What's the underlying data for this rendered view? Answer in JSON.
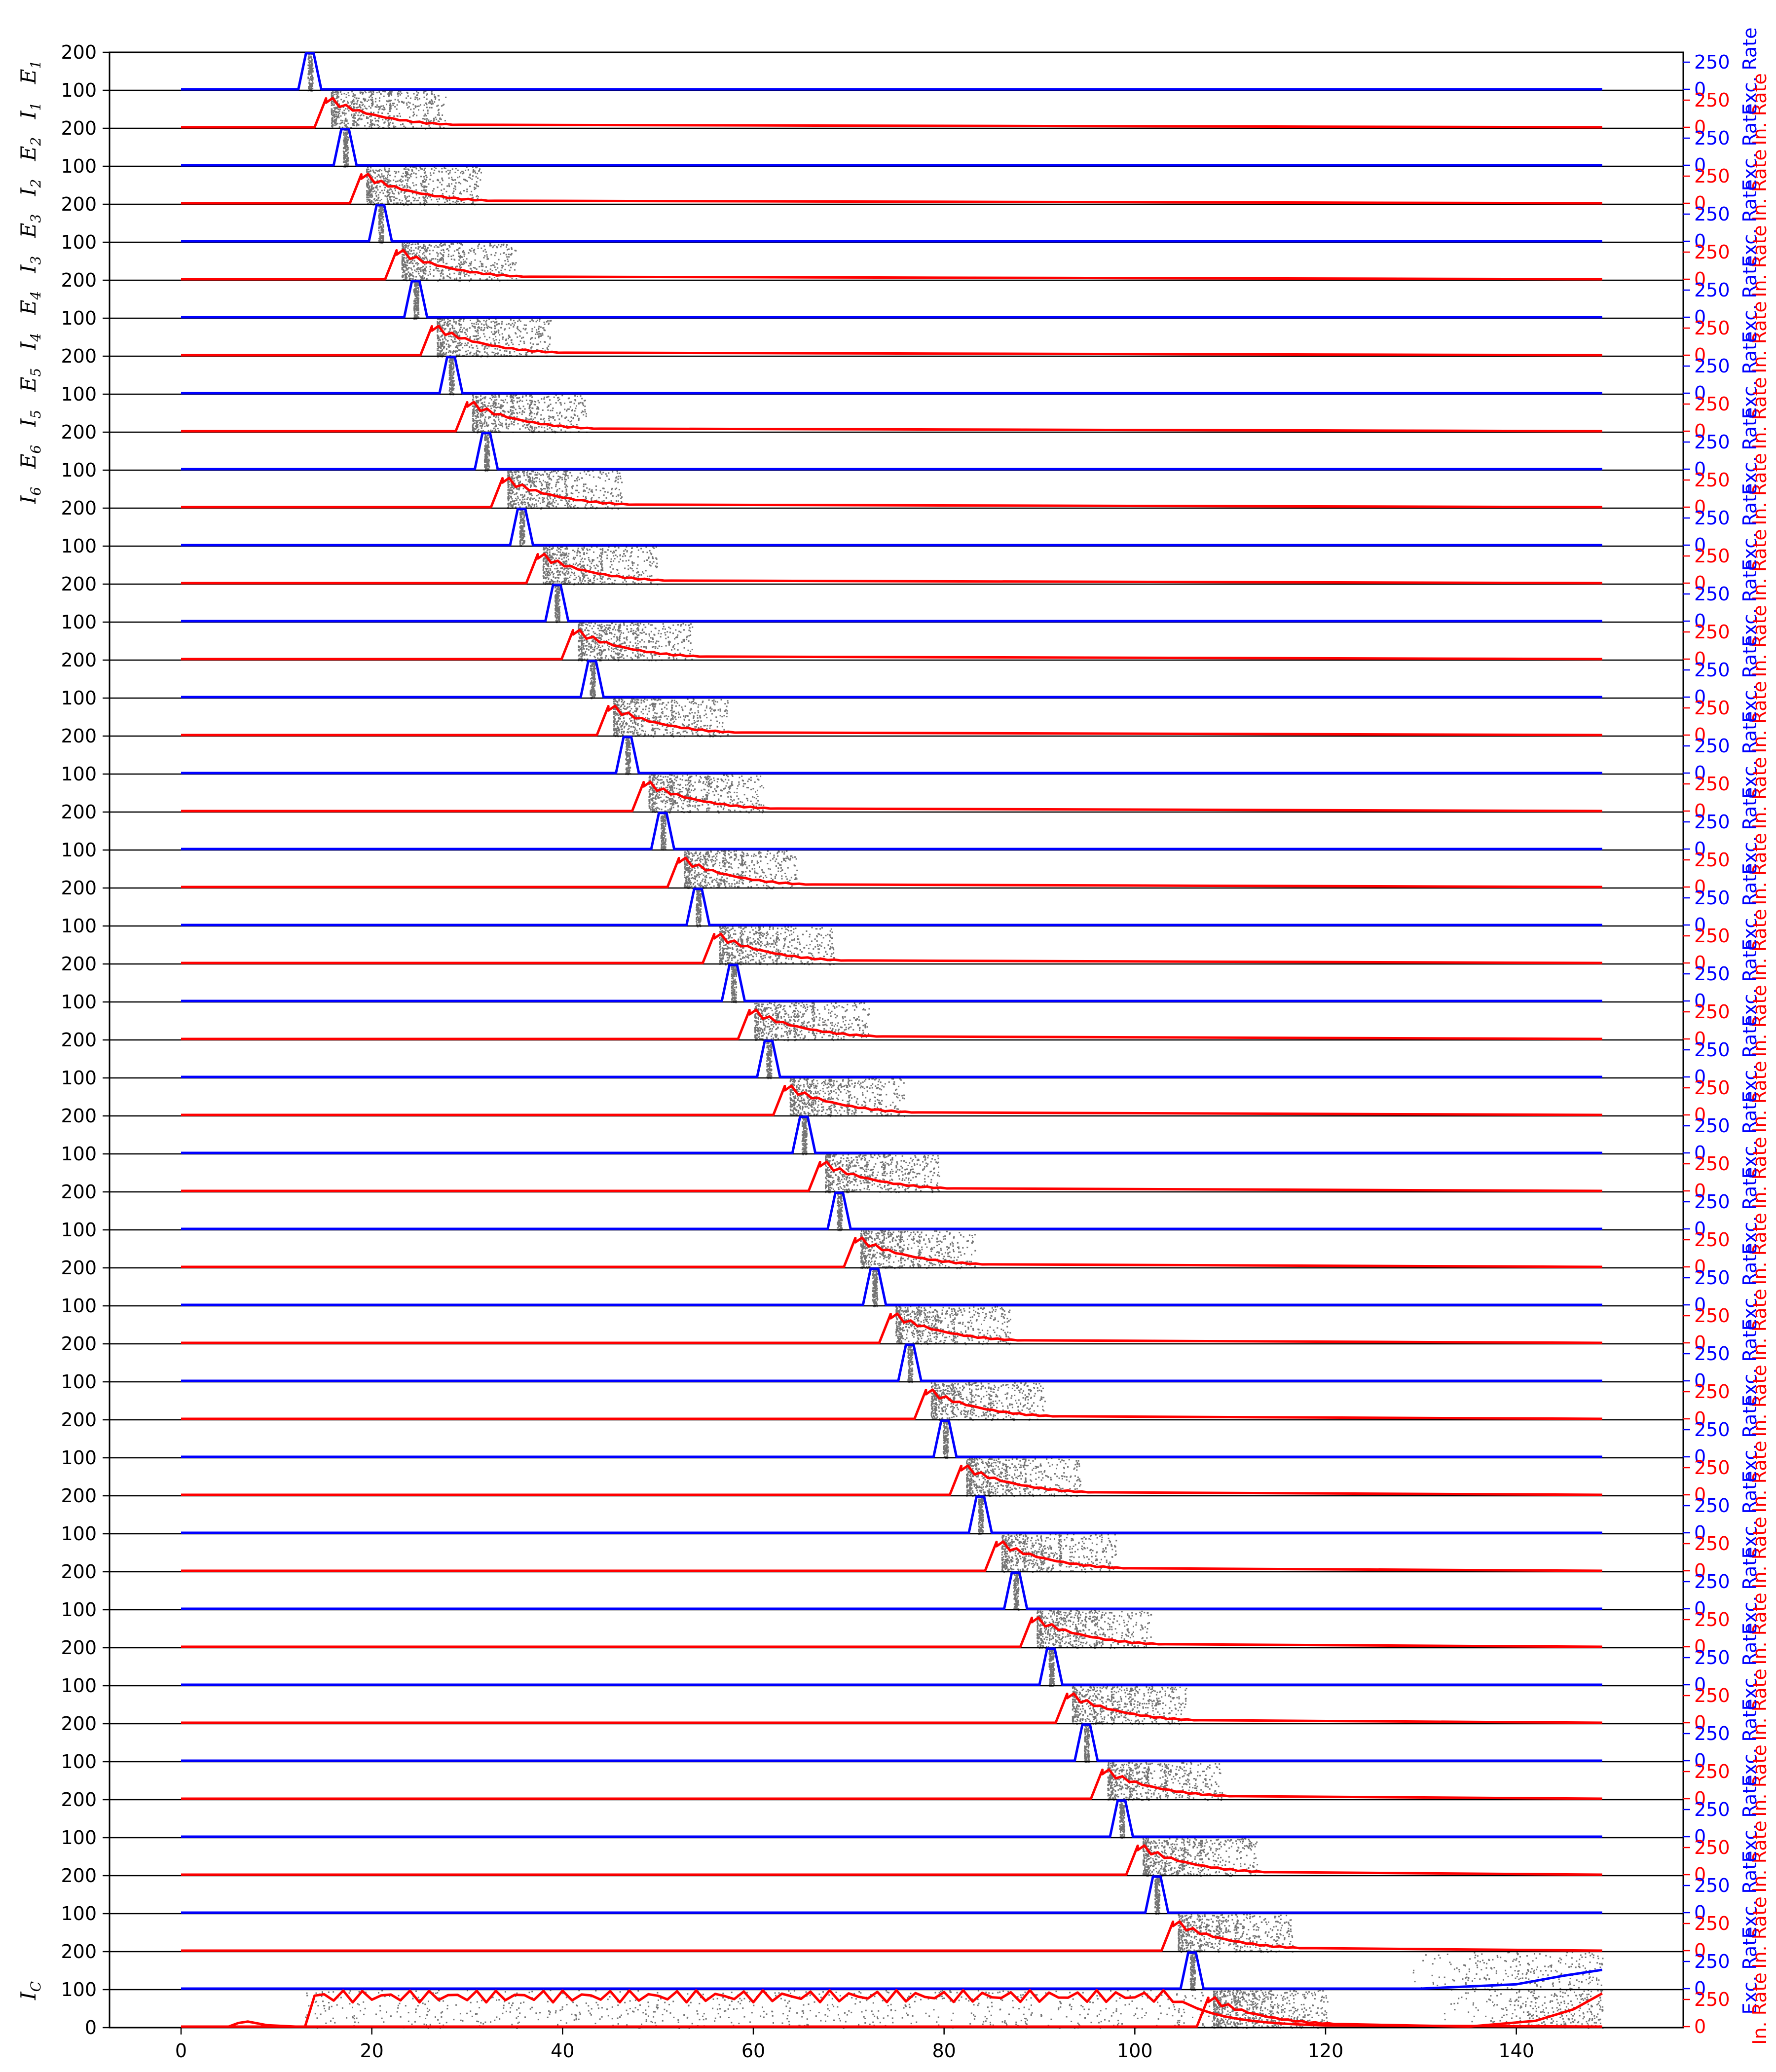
{
  "chart_data": {
    "type": "line",
    "title": "",
    "xlabel": "",
    "xlim": [
      -7.5,
      157.5
    ],
    "xticks": [
      0,
      20,
      40,
      60,
      80,
      100,
      120,
      140
    ],
    "xtick_labels": [
      "0",
      "20",
      "40",
      "60",
      "80",
      "100",
      "120",
      "140"
    ],
    "grid": false,
    "raster_ylim": [
      0,
      200
    ],
    "raster_ytick_labels": [
      "200",
      "100",
      "200",
      "100",
      "200",
      "100",
      "200",
      "100",
      "200",
      "100",
      "200",
      "100",
      "200",
      "100",
      "200",
      "100",
      "200",
      "100",
      "200",
      "100",
      "200",
      "100",
      "200",
      "100",
      "200",
      "100",
      "200",
      "100",
      "200",
      "100",
      "200",
      "100",
      "200",
      "100",
      "200",
      "100",
      "200",
      "100",
      "200",
      "100",
      "200",
      "100",
      "200",
      "100",
      "200",
      "100",
      "200",
      "100",
      "200",
      "100",
      "200",
      "100",
      "0"
    ],
    "row_labels": [
      {
        "base": "E",
        "sub": "1"
      },
      {
        "base": "I",
        "sub": "1"
      },
      {
        "base": "E",
        "sub": "2"
      },
      {
        "base": "I",
        "sub": "2"
      },
      {
        "base": "E",
        "sub": "3"
      },
      {
        "base": "I",
        "sub": "3"
      },
      {
        "base": "E",
        "sub": "4"
      },
      {
        "base": "I",
        "sub": "4"
      },
      {
        "base": "E",
        "sub": "5"
      },
      {
        "base": "I",
        "sub": "5"
      },
      {
        "base": "E",
        "sub": "6"
      },
      {
        "base": "I",
        "sub": "6"
      },
      {
        "base": "I",
        "sub": "C"
      }
    ],
    "right_axis": {
      "exc_tick_labels": [
        "250",
        "0"
      ],
      "inh_tick_labels": [
        "250",
        "0"
      ],
      "exc_label": "Exc. Rate",
      "inh_label": "In. Rate",
      "exc_color": "#0000ff",
      "inh_color": "#ff0000"
    },
    "num_groups": 26,
    "group_onsets": [
      13.5,
      17.2,
      20.9,
      24.6,
      28.3,
      32.0,
      35.7,
      39.4,
      43.1,
      46.8,
      50.5,
      54.2,
      57.9,
      61.6,
      65.3,
      69.0,
      72.7,
      76.4,
      80.1,
      83.8,
      87.5,
      91.2,
      94.9,
      98.6,
      102.3,
      106.0
    ],
    "exc_rate_peak": 250,
    "inh_rate_peak": 200,
    "rate_x_end": 149,
    "series": [
      {
        "name": "Exc. Rate",
        "color": "#0000ff"
      },
      {
        "name": "In. Rate",
        "color": "#ff0000"
      }
    ],
    "final_exc_late_activity": {
      "x": [
        130,
        140,
        145,
        149
      ],
      "rate": [
        5,
        30,
        90,
        130
      ]
    },
    "final_inh_late_activity": {
      "x": [
        135,
        142,
        146,
        149
      ],
      "rate": [
        5,
        40,
        120,
        230
      ]
    },
    "ic_rate": {
      "x_start": 13,
      "x_end": 120,
      "typical": 210,
      "early_x": [
        5,
        6,
        7,
        9,
        12
      ],
      "early_rate": [
        0,
        25,
        35,
        10,
        0
      ]
    },
    "ic_raster_ylim": [
      0,
      100
    ],
    "colors": {
      "exc": "#0000ff",
      "inh": "#ff0000",
      "raster": "#000000",
      "axis": "#000000"
    }
  }
}
